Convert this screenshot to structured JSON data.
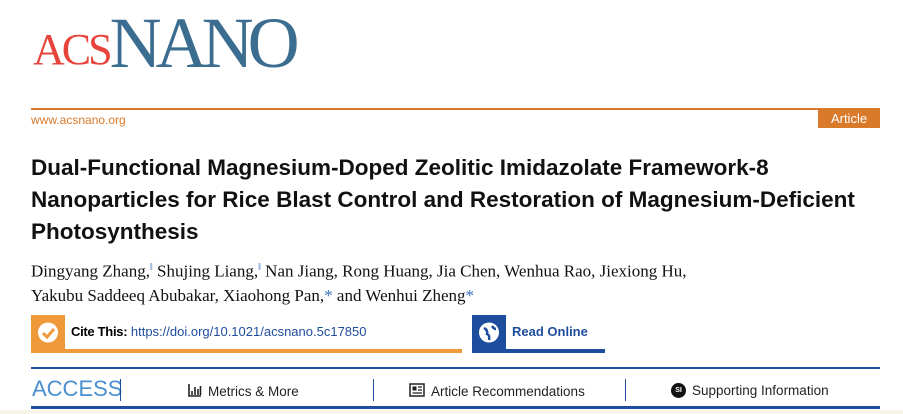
{
  "journal": {
    "logo_text": "ACS NANO",
    "url": "www.acsnano.org",
    "article_type": "Article"
  },
  "title": "Dual-Functional Magnesium-Doped Zeolitic Imidazolate Framework-8 Nanoparticles for Rice Blast Control and Restoration of Magnesium-Deficient Photosynthesis",
  "authors_line1": {
    "a1": "Dingyang Zhang,",
    "s1": "‖",
    "a2": " Shujing Liang,",
    "s2": "‖",
    "a3": " Nan Jiang, Rong Huang, Jia Chen, Wenhua Rao, Jiexiong Hu,"
  },
  "authors_line2": {
    "a1": "Yakubu Saddeeq Abubakar, Xiaohong Pan,",
    "s1": "*",
    "a2": " and Wenhui Zheng",
    "s2": "*"
  },
  "cite": {
    "label": "Cite This:",
    "doi": "https://doi.org/10.1021/acsnano.5c17850"
  },
  "read_online": "Read Online",
  "access": {
    "label": "ACCESS",
    "metrics": "Metrics & More",
    "recommendations": "Article Recommendations",
    "si_badge": "SI",
    "supporting": "Supporting Information"
  },
  "colors": {
    "orange": "#d9792a",
    "blue": "#1f4d9e",
    "logo_red": "#e8433a",
    "logo_blue": "#3b6d90"
  }
}
